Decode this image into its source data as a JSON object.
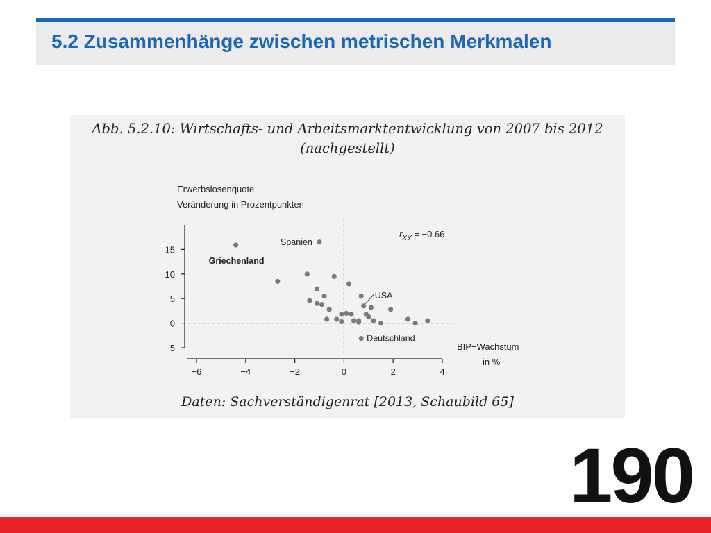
{
  "slide": {
    "title": "5.2 Zusammenhänge zwischen metrischen Merkmalen",
    "page_number": "190"
  },
  "figure": {
    "caption_line1": "Abb. 5.2.10: Wirtschafts- und Arbeitsmarktentwicklung von 2007 bis 2012",
    "caption_line2": "(nachgestellt)",
    "source": "Daten: Sachverständigenrat [2013, Schaubild 65]"
  },
  "colors": {
    "title_blue": "#1a67b3",
    "bottom_red": "#e8232a",
    "point_gray": "#7a7a7a",
    "panel_bg": "#f2f2f2"
  },
  "chart_data": {
    "type": "scatter",
    "ylabel_line1": "Erwerbslosenquote",
    "ylabel_line2": "Veränderung in Prozentpunkten",
    "xlabel_line1": "BIP−Wachstum",
    "xlabel_line2": "in %",
    "x_ticks": [
      -6,
      -4,
      -2,
      0,
      2,
      4
    ],
    "x_tick_labels": [
      "−6",
      "−4",
      "−2",
      "0",
      "2",
      "4"
    ],
    "y_ticks": [
      -5,
      0,
      5,
      10,
      15
    ],
    "y_tick_labels": [
      "−5",
      "0",
      "5",
      "10",
      "15"
    ],
    "xlim": [
      -6,
      4
    ],
    "ylim": [
      -5,
      20
    ],
    "reference_lines": {
      "x": 0,
      "y": 0,
      "style": "dashed"
    },
    "correlation": {
      "label": "r",
      "subscript": "XY",
      "value": "= −0.66"
    },
    "points": [
      {
        "x": -4.4,
        "y": 15.9
      },
      {
        "x": -1.0,
        "y": 16.5
      },
      {
        "x": -2.7,
        "y": 8.5
      },
      {
        "x": -1.5,
        "y": 10.0
      },
      {
        "x": -0.4,
        "y": 9.5
      },
      {
        "x": 0.2,
        "y": 8.0
      },
      {
        "x": -1.1,
        "y": 7.0
      },
      {
        "x": -0.8,
        "y": 5.5
      },
      {
        "x": -1.4,
        "y": 4.6
      },
      {
        "x": -1.1,
        "y": 4.0
      },
      {
        "x": -0.9,
        "y": 3.8
      },
      {
        "x": -0.6,
        "y": 2.8
      },
      {
        "x": -0.7,
        "y": 0.8
      },
      {
        "x": -0.3,
        "y": 0.8
      },
      {
        "x": -0.1,
        "y": 0.3
      },
      {
        "x": -0.1,
        "y": 1.8
      },
      {
        "x": 0.1,
        "y": 2.0
      },
      {
        "x": 0.3,
        "y": 1.8
      },
      {
        "x": 0.4,
        "y": 0.5
      },
      {
        "x": 0.6,
        "y": 0.5
      },
      {
        "x": 0.6,
        "y": 0.2
      },
      {
        "x": 0.7,
        "y": 5.5
      },
      {
        "x": 0.8,
        "y": 3.5
      },
      {
        "x": 0.9,
        "y": 1.8
      },
      {
        "x": 1.0,
        "y": 1.3
      },
      {
        "x": 1.1,
        "y": 3.2
      },
      {
        "x": 1.2,
        "y": 0.5
      },
      {
        "x": 1.5,
        "y": 0.0
      },
      {
        "x": 1.9,
        "y": 2.8
      },
      {
        "x": 2.6,
        "y": 0.8
      },
      {
        "x": 2.9,
        "y": 0.0
      },
      {
        "x": 3.4,
        "y": 0.5
      },
      {
        "x": 0.7,
        "y": -3.1
      }
    ],
    "annotations": [
      {
        "text": "Griechenland",
        "x": -4.4,
        "y": 15.9,
        "bold": true
      },
      {
        "text": "Spanien",
        "x": -1.0,
        "y": 16.5,
        "bold": false
      },
      {
        "text": "USA",
        "x": 0.8,
        "y": 3.5,
        "bold": false
      },
      {
        "text": "Deutschland",
        "x": 0.7,
        "y": -3.1,
        "bold": false
      }
    ]
  }
}
